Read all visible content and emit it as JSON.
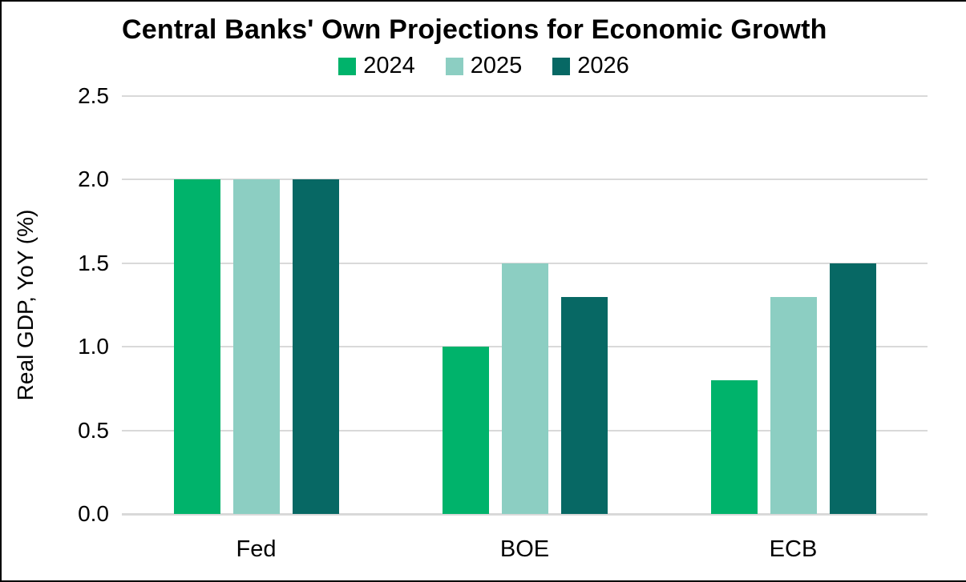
{
  "chart_data": {
    "type": "bar",
    "title": "Central Banks' Own Projections for Economic Growth",
    "xlabel": "",
    "ylabel": "Real GDP, YoY (%)",
    "categories": [
      "Fed",
      "BOE",
      "ECB"
    ],
    "series": [
      {
        "name": "2024",
        "color": "#00B36B",
        "values": [
          2.0,
          1.0,
          0.8
        ]
      },
      {
        "name": "2025",
        "color": "#8CCEC2",
        "values": [
          2.0,
          1.5,
          1.3
        ]
      },
      {
        "name": "2026",
        "color": "#076864",
        "values": [
          2.0,
          1.3,
          1.5
        ]
      }
    ],
    "ylim": [
      0,
      2.5
    ],
    "ytick_step": 0.5,
    "ytick_labels": [
      "0.0",
      "0.5",
      "1.0",
      "1.5",
      "2.0",
      "2.5"
    ],
    "grid": "horizontal",
    "gridline_color": "#D9D9D9",
    "legend_position": "top-center",
    "axis_text_color": "#000000",
    "background_color": "#FFFFFF",
    "frame_border_color": "#000000"
  }
}
